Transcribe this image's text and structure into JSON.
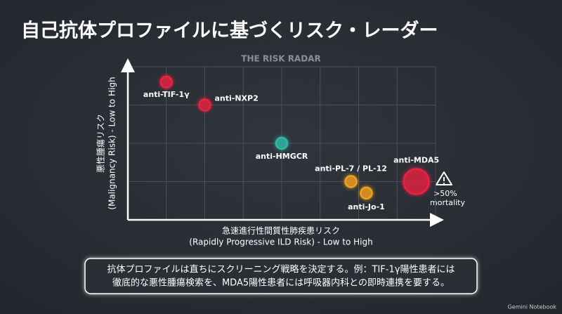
{
  "title": "自己抗体プロファイルに基づくリスク・レーダー",
  "chart_data": {
    "type": "scatter",
    "title": "THE RISK RADAR",
    "y_label": [
      "悪性腫瘍リスク",
      "(Malignancy Risk) - Low to High"
    ],
    "x_label": [
      "急速進行性間質性肺疾患リスク",
      "(Rapidly Progressive ILD Risk) - Low to High"
    ],
    "labels": [
      "anti-TIF-1γ",
      "anti-NXP2",
      "anti-HMGCR",
      "anti-PL-7 / PL-12",
      "anti-Jo-1",
      "anti-MDA5"
    ],
    "x": [
      1.0,
      2.0,
      4.0,
      5.8,
      6.2,
      7.5
    ],
    "values": [
      3.6,
      3.0,
      2.0,
      1.0,
      0.7,
      1.0
    ],
    "sizes": [
      8,
      8,
      8,
      8,
      8,
      18
    ],
    "colors": [
      "#e8223f",
      "#e8223f",
      "#2fb8a8",
      "#f0a020",
      "#f0a020",
      "#e8223f"
    ],
    "xlim": [
      0,
      8
    ],
    "ylim": [
      0,
      4
    ],
    "xticks": [
      1,
      2,
      3,
      4,
      5,
      6,
      7
    ],
    "yticks": [
      1,
      2,
      3
    ],
    "grid": true,
    "annotation": [
      ">50%",
      "mortality"
    ]
  },
  "callout": [
    "抗体プロファイルは直ちにスクリーニング戦略を決定する。例：TIF-1γ陽性患者には",
    "徹底的な悪性腫瘍検索を、MDA5陽性患者には呼吸器内科との即時連携を要する。"
  ],
  "footer": "Gemini Notebook"
}
